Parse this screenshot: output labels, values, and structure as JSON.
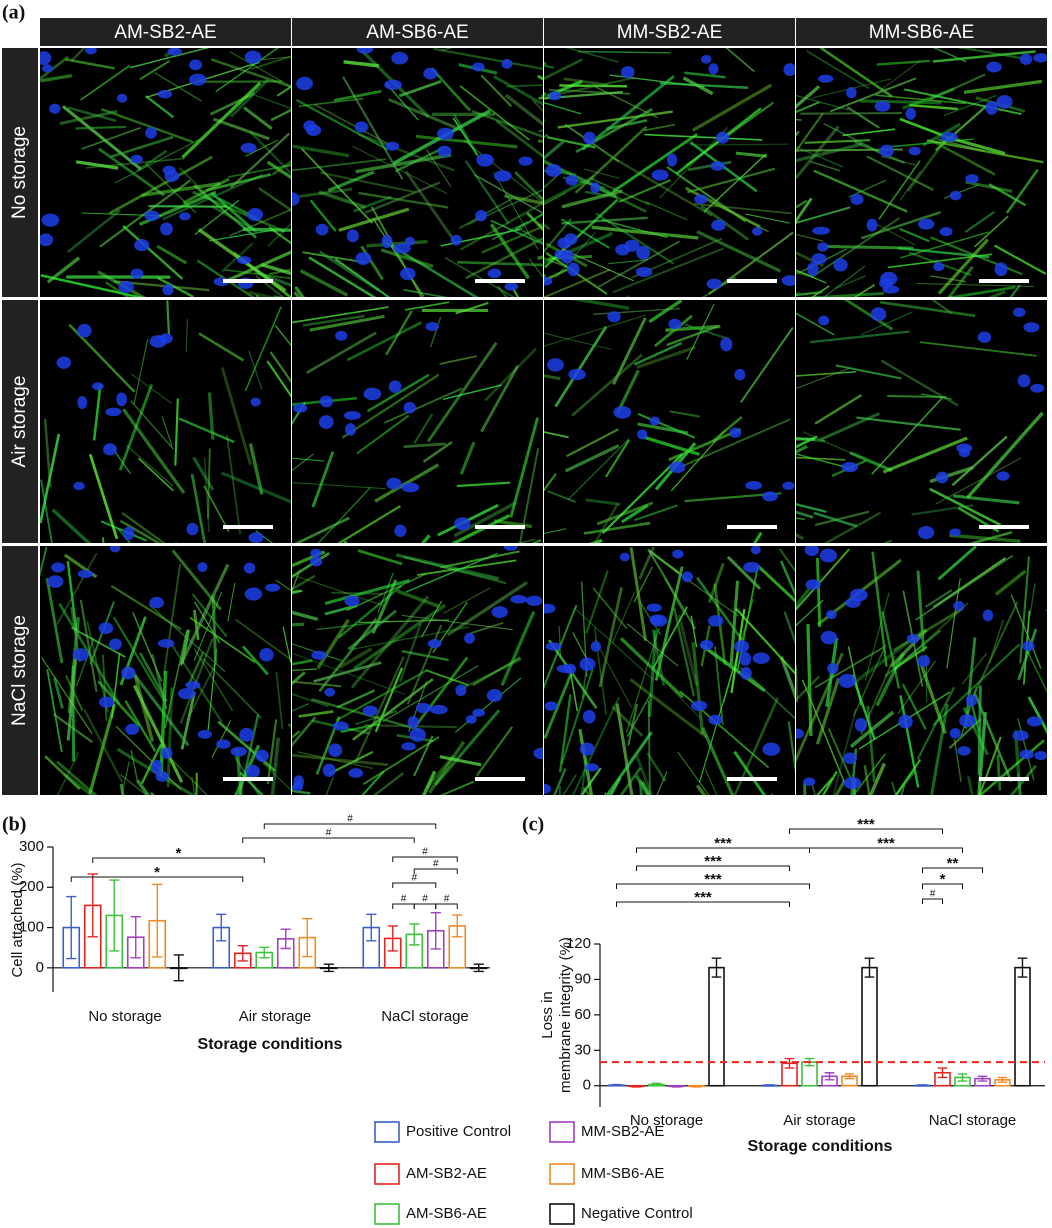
{
  "panel_labels": [
    "(a)",
    "(b)",
    "(c)"
  ],
  "micrographs": {
    "columns": [
      "AM-SB2-AE",
      "AM-SB6-AE",
      "MM-SB2-AE",
      "MM-SB6-AE"
    ],
    "rows": [
      "No storage",
      "Air storage",
      "NaCl storage"
    ]
  },
  "chart_data": [
    {
      "type": "bar",
      "y_label": "Cell attached (%)",
      "x_label": "Storage conditions",
      "categories": [
        "No storage",
        "Air storage",
        "NaCl storage"
      ],
      "ylim": [
        -60,
        300
      ],
      "yticks": [
        0,
        100,
        200,
        300
      ],
      "series": [
        {
          "name": "Positive Control",
          "color": "#3b5fcf",
          "values": [
            100,
            100,
            100
          ],
          "errors": [
            77,
            33,
            33
          ]
        },
        {
          "name": "AM-SB2-AE",
          "color": "#e8231f",
          "values": [
            155,
            36,
            73
          ],
          "errors": [
            78,
            19,
            31
          ]
        },
        {
          "name": "AM-SB6-AE",
          "color": "#3cc23c",
          "values": [
            130,
            38,
            83
          ],
          "errors": [
            88,
            13,
            26
          ]
        },
        {
          "name": "MM-SB2-AE",
          "color": "#a040c0",
          "values": [
            76,
            72,
            92
          ],
          "errors": [
            51,
            24,
            45
          ]
        },
        {
          "name": "MM-SB6-AE",
          "color": "#f08a24",
          "values": [
            117,
            75,
            104
          ],
          "errors": [
            90,
            47,
            27
          ]
        },
        {
          "name": "Negative Control",
          "color": "#111111",
          "values": [
            0,
            0,
            0
          ],
          "errors": [
            32,
            9,
            9
          ]
        }
      ],
      "annotations": [
        "#",
        "#",
        "*",
        "*",
        "#",
        "#",
        "#",
        "#",
        "#",
        "#"
      ]
    },
    {
      "type": "bar",
      "y_label": [
        "Loss in",
        "membrane integrity (%)"
      ],
      "x_label": "Storage conditions",
      "categories": [
        "No storage",
        "Air storage",
        "NaCl storage"
      ],
      "ylim": [
        -18,
        120
      ],
      "yticks": [
        0,
        30,
        60,
        90,
        120
      ],
      "threshold": 20,
      "threshold_color": "#e8231f",
      "series": [
        {
          "color": "#3b5fcf",
          "values": [
            0.5,
            0.3,
            0.3
          ],
          "errors": [
            0.5,
            0.5,
            0.5
          ]
        },
        {
          "color": "#e8231f",
          "values": [
            -0.5,
            19,
            11
          ],
          "errors": [
            0.5,
            4,
            4
          ]
        },
        {
          "color": "#3cc23c",
          "values": [
            1,
            20,
            7
          ],
          "errors": [
            1,
            3,
            3
          ]
        },
        {
          "color": "#a040c0",
          "values": [
            -0.5,
            8,
            6
          ],
          "errors": [
            0.5,
            3,
            2
          ]
        },
        {
          "color": "#f08a24",
          "values": [
            -0.5,
            8,
            5
          ],
          "errors": [
            0.5,
            2,
            2
          ]
        },
        {
          "color": "#111111",
          "values": [
            100,
            100,
            100
          ],
          "errors": [
            8,
            8,
            8
          ]
        }
      ],
      "annotations": [
        "***",
        "***",
        "***",
        "***",
        "***",
        "***",
        "**",
        "*",
        "#"
      ]
    }
  ]
}
